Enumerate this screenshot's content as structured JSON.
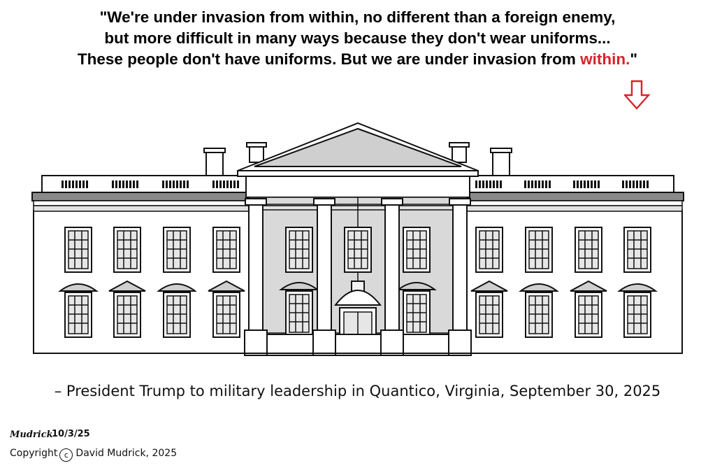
{
  "quote": {
    "line1": "\"We're under invasion from within, no different than a foreign enemy,",
    "line2": "but more difficult in many ways because they don't wear uniforms...",
    "line3_prefix": "These people don't have uniforms.  But we are under invasion from ",
    "line3_highlight": "within.",
    "line3_suffix": "\""
  },
  "colors": {
    "highlight": "#d8232a",
    "ink": "#111111",
    "fill_gray": "#d9d9d9"
  },
  "icons": {
    "arrow": "arrow-down-outline-icon"
  },
  "attribution": "– President Trump to military leadership in Quantico, Virginia, September 30, 2025",
  "signature": {
    "name": "Mudrick",
    "date": "10/3/25"
  },
  "copyright": {
    "prefix": "Copyright",
    "symbol": "c",
    "text": "David Mudrick, 2025"
  }
}
